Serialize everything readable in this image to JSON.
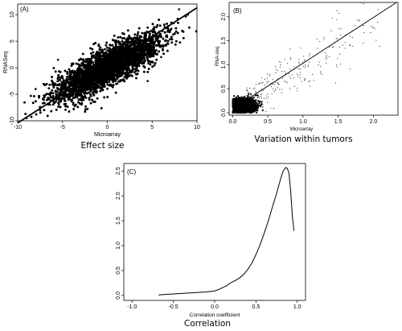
{
  "chart_data": [
    {
      "type": "scatter",
      "panel_label": "(A)",
      "xlabel": "Microarray",
      "ylabel": "RNASeq",
      "caption": "Effect size",
      "xlim": [
        -10,
        10
      ],
      "ylim": [
        -10,
        12
      ],
      "xticks": [
        "-10",
        "-5",
        "0",
        "5",
        "10"
      ],
      "xtick_values": [
        -10,
        -5,
        0,
        5,
        10
      ],
      "yticks": [
        "-10",
        "-5",
        "0",
        "5",
        "10"
      ],
      "ytick_values": [
        -10,
        -5,
        0,
        5,
        10
      ],
      "cloud": {
        "center": [
          0,
          0
        ],
        "spread_x": 2.9,
        "correlation": 0.82,
        "n_points": 3200
      },
      "fit_line": {
        "x": [
          -10,
          10
        ],
        "y": [
          -10.4,
          11.3
        ]
      },
      "outliers": [
        [
          -9,
          -9.5
        ],
        [
          -7.5,
          -8
        ],
        [
          9,
          10
        ],
        [
          8,
          11
        ],
        [
          -5.5,
          1.5
        ],
        [
          6,
          2
        ],
        [
          4.5,
          -2.5
        ],
        [
          -8,
          -4
        ]
      ]
    },
    {
      "type": "scatter",
      "panel_label": "(B)",
      "xlabel": "Microarray",
      "ylabel": "RNA-seq",
      "caption": "Variation within tumors",
      "xlim": [
        -0.05,
        2.35
      ],
      "ylim": [
        -0.05,
        2.3
      ],
      "xticks": [
        "0.0",
        "0.5",
        "1.0",
        "1.5",
        "2.0"
      ],
      "xtick_values": [
        0,
        0.5,
        1,
        1.5,
        2
      ],
      "yticks": [
        "0.0",
        "0.5",
        "1.0",
        "1.5",
        "2.0"
      ],
      "ytick_values": [
        0,
        0.5,
        1,
        1.5,
        2
      ],
      "cloud": {
        "center": [
          0.15,
          0.14
        ],
        "spread": 0.09,
        "n_points": 1600
      },
      "sparse": {
        "n_points": 260
      },
      "fit_line": {
        "x": [
          0.2,
          2.33
        ],
        "y": [
          0.27,
          2.3
        ]
      }
    },
    {
      "type": "line",
      "panel_label": "(C)",
      "xlabel": "Correlation coefficient",
      "ylabel": "",
      "caption": "Correlation",
      "xlim": [
        -1.1,
        1.1
      ],
      "ylim": [
        -0.1,
        2.65
      ],
      "xticks": [
        "-1.0",
        "-0.5",
        "0.0",
        "0.5",
        "1.0"
      ],
      "xtick_values": [
        -1,
        -0.5,
        0,
        0.5,
        1
      ],
      "yticks": [
        "0.0",
        "0.5",
        "1.0",
        "1.5",
        "2.0",
        "2.5"
      ],
      "ytick_values": [
        0,
        0.5,
        1,
        1.5,
        2,
        2.5
      ],
      "x": [
        -0.68,
        -0.6,
        -0.5,
        -0.4,
        -0.3,
        -0.2,
        -0.1,
        0.0,
        0.05,
        0.1,
        0.15,
        0.2,
        0.25,
        0.3,
        0.35,
        0.4,
        0.45,
        0.5,
        0.55,
        0.6,
        0.65,
        0.7,
        0.75,
        0.8,
        0.83,
        0.86,
        0.88,
        0.9,
        0.92,
        0.94,
        0.96
      ],
      "y": [
        0.01,
        0.02,
        0.03,
        0.04,
        0.05,
        0.06,
        0.07,
        0.09,
        0.12,
        0.16,
        0.2,
        0.26,
        0.3,
        0.35,
        0.42,
        0.52,
        0.65,
        0.82,
        1.02,
        1.25,
        1.5,
        1.78,
        2.05,
        2.35,
        2.5,
        2.57,
        2.55,
        2.45,
        2.1,
        1.6,
        1.3
      ]
    }
  ]
}
